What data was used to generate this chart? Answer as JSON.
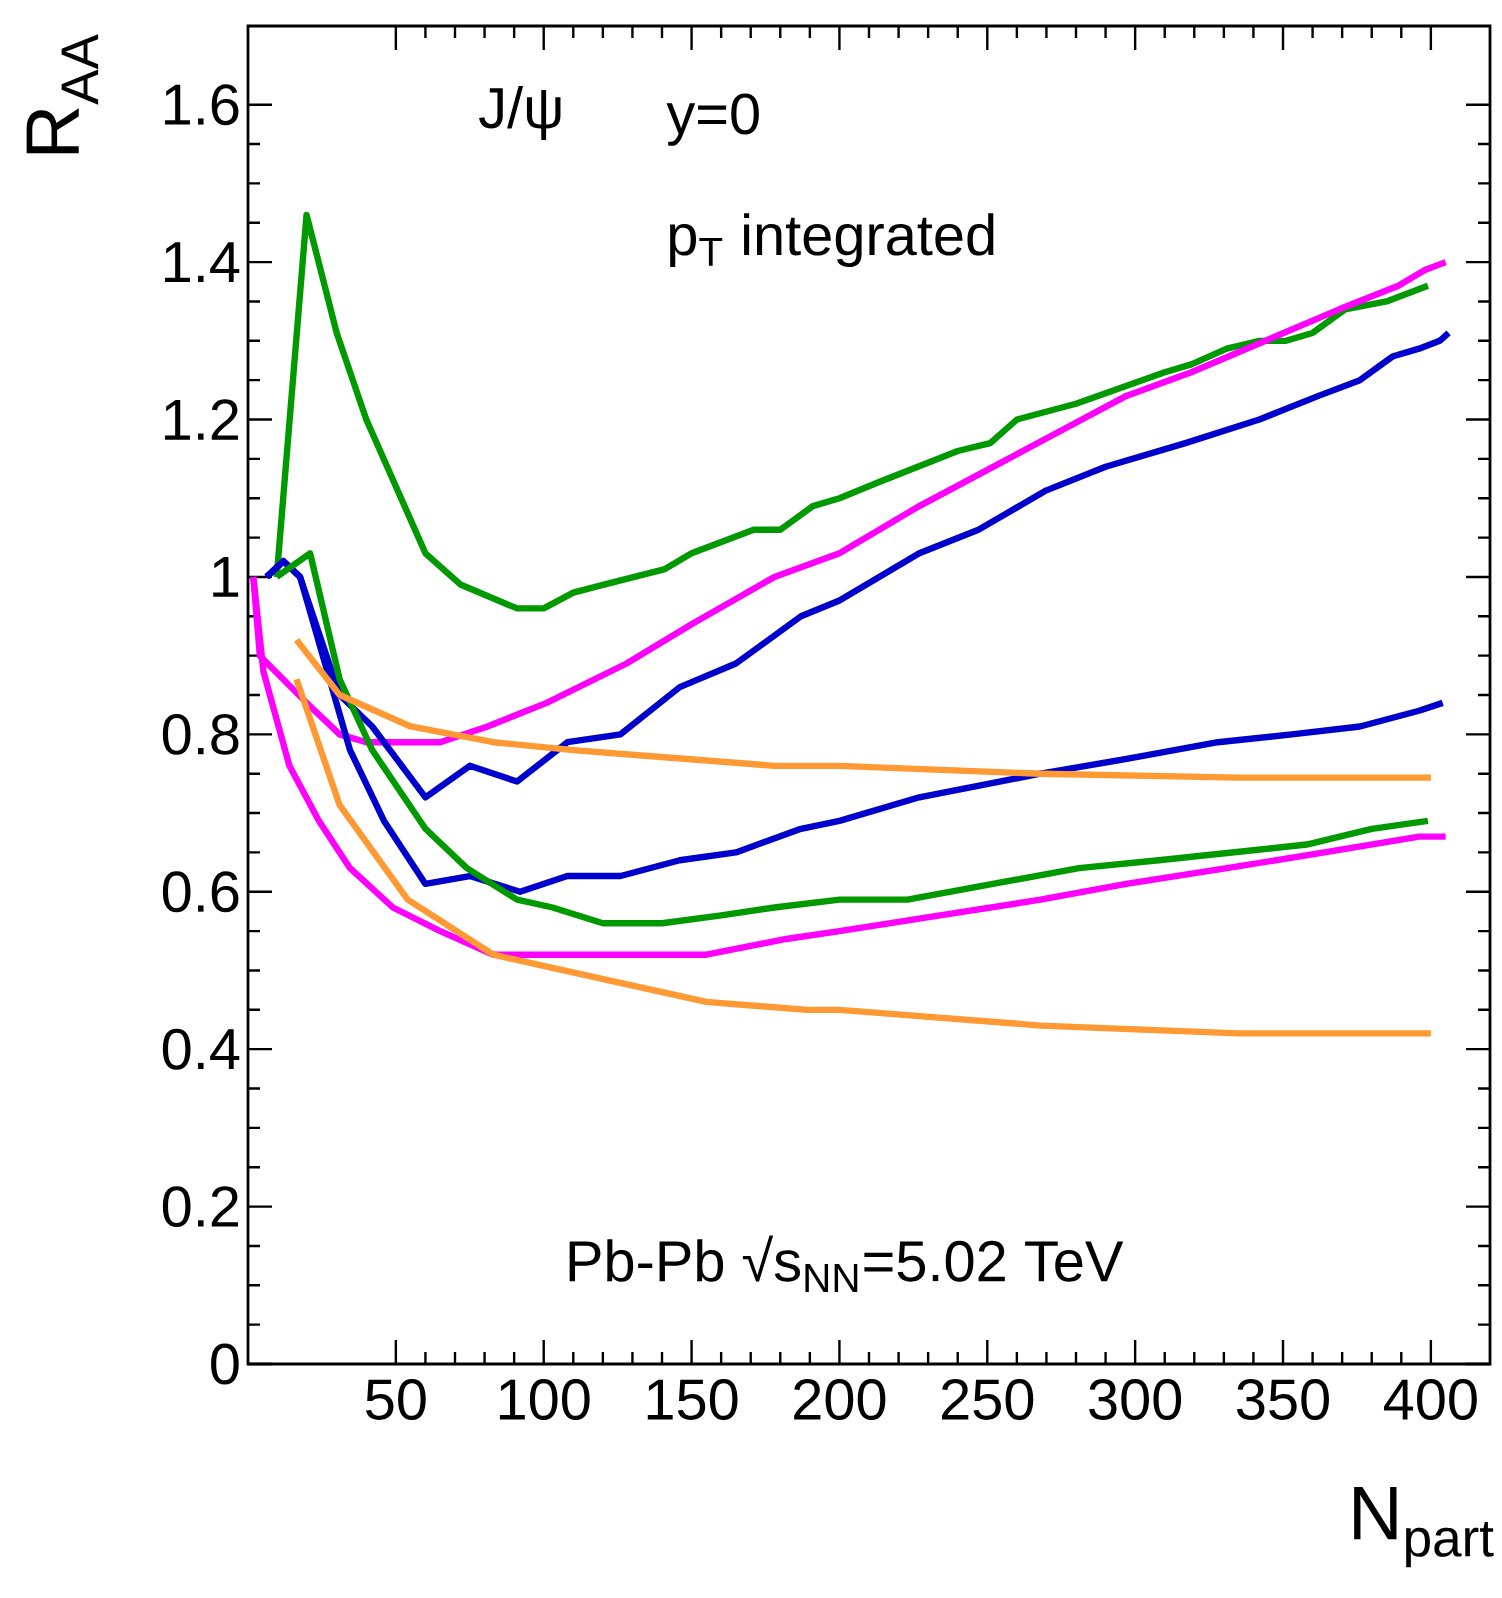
{
  "chart_data": {
    "type": "line",
    "xlabel": "N$_{part}$",
    "ylabel": "R$_{AA}$",
    "xlim": [
      0,
      420
    ],
    "ylim": [
      0,
      1.7
    ],
    "xticks": [
      50,
      100,
      150,
      200,
      250,
      300,
      350,
      400
    ],
    "yticks": [
      0,
      0.2,
      0.4,
      0.6,
      0.8,
      1,
      1.2,
      1.4,
      1.6
    ],
    "annotations": [
      "J/ψ",
      "y=0",
      "p$_{T}$ integrated",
      "Pb-Pb √s$_{NN}$=5.02 TeV"
    ],
    "series": [
      {
        "color": "#009900",
        "x": [
          9.7,
          19.8,
          30,
          40,
          60,
          72,
          91,
          100,
          110,
          120,
          141,
          150,
          171,
          180,
          191,
          200,
          213,
          240,
          251,
          260,
          280,
          310,
          319,
          331,
          342,
          351,
          360,
          371,
          385,
          399
        ],
        "values": [
          1.0,
          1.46,
          1.31,
          1.2,
          1.03,
          0.99,
          0.96,
          0.96,
          0.98,
          0.99,
          1.01,
          1.03,
          1.06,
          1.06,
          1.09,
          1.1,
          1.12,
          1.16,
          1.17,
          1.2,
          1.22,
          1.26,
          1.27,
          1.29,
          1.3,
          1.3,
          1.31,
          1.34,
          1.35,
          1.37
        ]
      },
      {
        "color": "#ff00ff",
        "x": [
          1.8,
          4,
          19.8,
          31,
          40,
          65,
          81,
          101,
          128,
          150,
          178,
          200,
          227,
          272,
          297,
          319,
          344,
          369,
          389,
          398,
          405
        ],
        "values": [
          1.0,
          0.9,
          0.84,
          0.8,
          0.79,
          0.79,
          0.81,
          0.84,
          0.89,
          0.94,
          1.0,
          1.03,
          1.09,
          1.18,
          1.23,
          1.26,
          1.3,
          1.34,
          1.37,
          1.39,
          1.4
        ]
      },
      {
        "color": "#0000cc",
        "x": [
          6.3,
          12,
          17.6,
          31,
          42,
          60,
          75,
          91,
          108,
          126,
          146,
          165,
          187,
          200,
          227,
          247,
          270,
          290,
          317,
          342,
          362,
          376,
          387,
          396,
          403,
          406
        ],
        "values": [
          1.0,
          1.02,
          1.0,
          0.85,
          0.81,
          0.72,
          0.76,
          0.74,
          0.79,
          0.8,
          0.86,
          0.89,
          0.95,
          0.97,
          1.03,
          1.06,
          1.11,
          1.14,
          1.17,
          1.2,
          1.23,
          1.25,
          1.28,
          1.29,
          1.3,
          1.31
        ]
      },
      {
        "color": "#0000cc",
        "x": [
          6.3,
          12,
          17.6,
          34.5,
          46,
          60,
          75,
          92,
          108,
          126,
          146,
          165,
          187,
          200,
          227,
          268,
          299,
          328,
          353,
          376,
          396,
          404
        ],
        "values": [
          1.0,
          1.02,
          1.0,
          0.78,
          0.69,
          0.61,
          0.62,
          0.6,
          0.62,
          0.62,
          0.64,
          0.65,
          0.68,
          0.69,
          0.72,
          0.75,
          0.77,
          0.79,
          0.8,
          0.81,
          0.83,
          0.84
        ]
      },
      {
        "color": "#009900",
        "x": [
          9.7,
          21,
          31,
          42,
          60,
          74,
          91,
          103,
          120,
          140,
          160,
          178,
          200,
          223,
          252,
          281,
          308,
          333,
          358,
          380,
          399
        ],
        "values": [
          1.0,
          1.03,
          0.87,
          0.78,
          0.68,
          0.63,
          0.59,
          0.58,
          0.56,
          0.56,
          0.57,
          0.58,
          0.59,
          0.59,
          0.61,
          0.63,
          0.64,
          0.65,
          0.66,
          0.68,
          0.69
        ]
      },
      {
        "color": "#ff00ff",
        "x": [
          1.8,
          5.2,
          14,
          24,
          34.5,
          49,
          65,
          83,
          105,
          128,
          155,
          182,
          200,
          234,
          268,
          297,
          331,
          364,
          396,
          405
        ],
        "values": [
          1.0,
          0.88,
          0.76,
          0.69,
          0.63,
          0.58,
          0.55,
          0.52,
          0.52,
          0.52,
          0.52,
          0.54,
          0.55,
          0.57,
          0.59,
          0.61,
          0.63,
          0.65,
          0.67,
          0.67
        ]
      },
      {
        "color": "#ff9933",
        "x": [
          16.4,
          31,
          55,
          83,
          110,
          144,
          178,
          200,
          268,
          335,
          400
        ],
        "values": [
          0.92,
          0.85,
          0.81,
          0.79,
          0.78,
          0.77,
          0.76,
          0.76,
          0.75,
          0.745,
          0.745
        ]
      },
      {
        "color": "#ff9933",
        "x": [
          16.4,
          31,
          54,
          83,
          119,
          155,
          189,
          200,
          268,
          335,
          400
        ],
        "values": [
          0.87,
          0.71,
          0.59,
          0.52,
          0.49,
          0.46,
          0.45,
          0.45,
          0.43,
          0.42,
          0.42
        ]
      }
    ]
  }
}
